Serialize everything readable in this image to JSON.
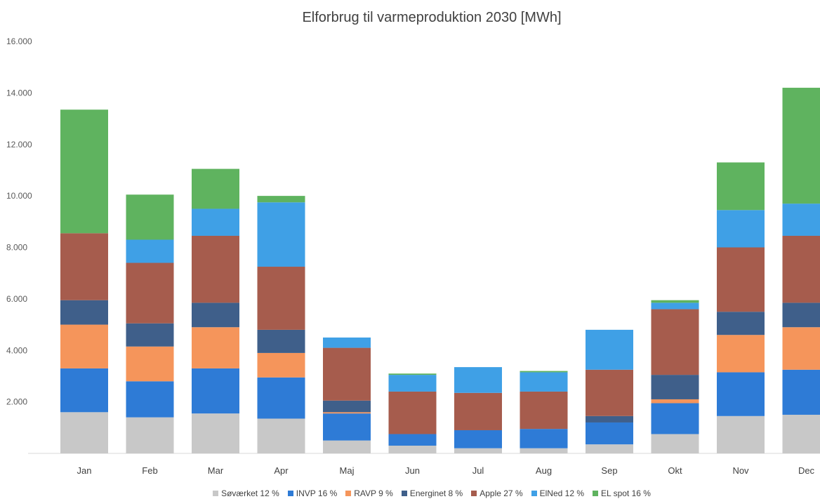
{
  "chart_data": {
    "type": "bar",
    "stacked": true,
    "title": "Elforbrug til varmeproduktion 2030 [MWh]",
    "xlabel": "",
    "ylabel": "",
    "ylim": [
      0,
      16000
    ],
    "yticks": [
      {
        "value": 2000,
        "label": "2.000"
      },
      {
        "value": 4000,
        "label": "4.000"
      },
      {
        "value": 6000,
        "label": "6.000"
      },
      {
        "value": 8000,
        "label": "8.000"
      },
      {
        "value": 10000,
        "label": "10.000"
      },
      {
        "value": 12000,
        "label": "12.000"
      },
      {
        "value": 14000,
        "label": "14.000"
      },
      {
        "value": 16000,
        "label": "16.000"
      }
    ],
    "grid": false,
    "legend_position": "bottom",
    "categories": [
      "Jan",
      "Feb",
      "Mar",
      "Apr",
      "Maj",
      "Jun",
      "Jul",
      "Aug",
      "Sep",
      "Okt",
      "Nov",
      "Dec"
    ],
    "series": [
      {
        "name": "Søværket 12 %",
        "color": "#c8c8c8",
        "values": [
          1600,
          1400,
          1550,
          1350,
          500,
          300,
          200,
          200,
          350,
          750,
          1450,
          1500
        ]
      },
      {
        "name": "INVP 16 %",
        "color": "#2e7bd6",
        "values": [
          1700,
          1400,
          1750,
          1600,
          1050,
          450,
          700,
          750,
          850,
          1200,
          1700,
          1750
        ]
      },
      {
        "name": "RAVP 9 %",
        "color": "#f5955b",
        "values": [
          1700,
          1350,
          1600,
          950,
          50,
          0,
          0,
          0,
          0,
          150,
          1450,
          1650
        ]
      },
      {
        "name": "Energinet 8 %",
        "color": "#3f5f8a",
        "values": [
          950,
          900,
          950,
          900,
          450,
          0,
          0,
          0,
          250,
          950,
          900,
          950
        ]
      },
      {
        "name": "Apple 27 %",
        "color": "#a65c4d",
        "values": [
          2600,
          2350,
          2600,
          2450,
          2050,
          1650,
          1450,
          1450,
          1800,
          2550,
          2500,
          2600
        ]
      },
      {
        "name": "ElNed 12 %",
        "color": "#3fa0e6",
        "values": [
          0,
          900,
          1050,
          2500,
          400,
          650,
          1000,
          750,
          1550,
          250,
          1450,
          1250
        ]
      },
      {
        "name": "EL spot 16 %",
        "color": "#5fb35f",
        "values": [
          4800,
          1750,
          1550,
          250,
          0,
          50,
          0,
          50,
          0,
          100,
          1850,
          4500
        ]
      }
    ]
  }
}
